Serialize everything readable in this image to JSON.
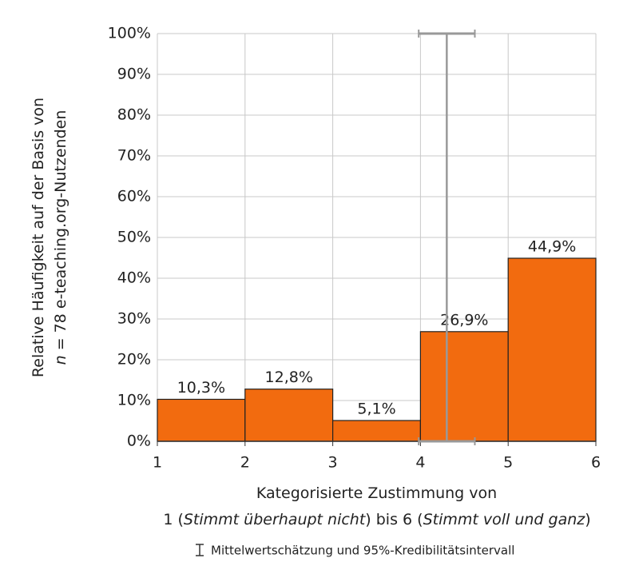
{
  "chart_data": {
    "type": "histogram",
    "bins": [
      1,
      2,
      3,
      4,
      5,
      6
    ],
    "values": [
      10.3,
      12.8,
      5.1,
      26.9,
      44.9
    ],
    "value_labels": [
      "10,3%",
      "12,8%",
      "5,1%",
      "26,9%",
      "44,9%"
    ],
    "color": "#f26b0f",
    "xlim": [
      1,
      6
    ],
    "xticks": [
      1,
      2,
      3,
      4,
      5,
      6
    ],
    "ylim": [
      0,
      100
    ],
    "yticks": [
      {
        "value": 0,
        "label": "0%"
      },
      {
        "value": 10,
        "label": "10%"
      },
      {
        "value": 20,
        "label": "20%"
      },
      {
        "value": 30,
        "label": "30%"
      },
      {
        "value": 40,
        "label": "40%"
      },
      {
        "value": 50,
        "label": "50%"
      },
      {
        "value": 60,
        "label": "60%"
      },
      {
        "value": 70,
        "label": "70%"
      },
      {
        "value": 80,
        "label": "80%"
      },
      {
        "value": 90,
        "label": "90%"
      },
      {
        "value": 100,
        "label": "100%"
      }
    ],
    "grid": true,
    "y_label": [
      [
        "Relative Häufigkeit auf der Basis von"
      ],
      [
        "n",
        " = 78 e-teaching.org-Nutzenden"
      ]
    ],
    "x_label": [
      [
        "Kategorisierte Zustimmung von"
      ],
      [
        "1 (",
        "Stimmt überhaupt nicht",
        ") bis 6 (",
        "Stimmt voll und ganz",
        ")"
      ]
    ],
    "interval": {
      "mean": 4.3,
      "lower": 3.98,
      "upper": 4.62,
      "color": "#999999"
    },
    "interval_label": "Mittelwertschätzung und 95%-Kredibilitätsintervall"
  }
}
